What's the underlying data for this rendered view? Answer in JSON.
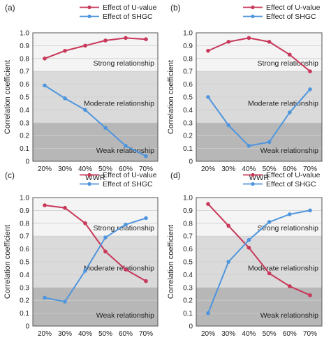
{
  "colors": {
    "u_value": "#c8385a",
    "shgc": "#4f95dd",
    "strong_band": "#f4f4f4",
    "moderate_band": "#dadada",
    "weak_band": "#b7b7b7"
  },
  "common": {
    "xlabel": "WWR",
    "ylabel": "Correlation coefficient",
    "ylim": [
      0,
      1
    ],
    "yticks": [
      "0",
      "0.1",
      "0.2",
      "0.3",
      "0.4",
      "0.5",
      "0.6",
      "0.7",
      "0.8",
      "0.9",
      "1.0"
    ],
    "bands": [
      {
        "from": 0.7,
        "to": 1.0,
        "label": "Strong relationship",
        "color": "strong_band"
      },
      {
        "from": 0.3,
        "to": 0.7,
        "label": "Moderate relationship",
        "color": "moderate_band"
      },
      {
        "from": 0.0,
        "to": 0.3,
        "label": "Weak relationship",
        "color": "weak_band"
      }
    ],
    "legend": [
      "Effect of U-value",
      "Effect of SHGC"
    ],
    "legend_position": "top-right"
  },
  "chart_data": [
    {
      "panel": "(a)",
      "type": "line",
      "categories": [
        "20%",
        "30%",
        "40%",
        "50%",
        "60%",
        "70%"
      ],
      "series": [
        {
          "name": "Effect of U-value",
          "values": [
            0.8,
            0.86,
            0.9,
            0.94,
            0.96,
            0.95
          ]
        },
        {
          "name": "Effect of SHGC",
          "values": [
            0.59,
            0.49,
            0.4,
            0.26,
            0.12,
            0.04
          ]
        }
      ]
    },
    {
      "panel": "(b)",
      "type": "line",
      "categories": [
        "20%",
        "30%",
        "40%",
        "50%",
        "60%",
        "70%"
      ],
      "series": [
        {
          "name": "Effect of U-value",
          "values": [
            0.86,
            0.93,
            0.96,
            0.93,
            0.83,
            0.7
          ]
        },
        {
          "name": "Effect of SHGC",
          "values": [
            0.5,
            0.28,
            0.12,
            0.15,
            0.38,
            0.56
          ]
        }
      ]
    },
    {
      "panel": "(c)",
      "type": "line",
      "categories": [
        "20%",
        "30%",
        "40%",
        "50%",
        "60%",
        "70%"
      ],
      "series": [
        {
          "name": "Effect of U-value",
          "values": [
            0.94,
            0.92,
            0.8,
            0.58,
            0.44,
            0.35
          ]
        },
        {
          "name": "Effect of SHGC",
          "values": [
            0.22,
            0.19,
            0.43,
            0.69,
            0.79,
            0.84
          ]
        }
      ]
    },
    {
      "panel": "(d)",
      "type": "line",
      "categories": [
        "20%",
        "30%",
        "40%",
        "50%",
        "60%",
        "70%"
      ],
      "series": [
        {
          "name": "Effect of U-value",
          "values": [
            0.95,
            0.78,
            0.61,
            0.41,
            0.31,
            0.24
          ]
        },
        {
          "name": "Effect of SHGC",
          "values": [
            0.1,
            0.5,
            0.67,
            0.81,
            0.87,
            0.9
          ]
        }
      ]
    }
  ]
}
